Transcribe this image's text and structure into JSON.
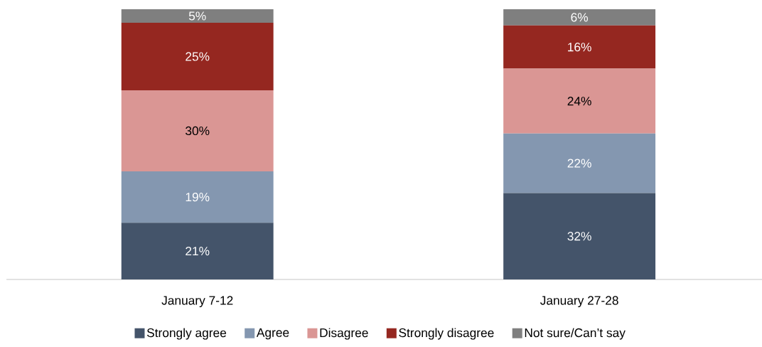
{
  "chart_data": {
    "type": "bar",
    "stacked": true,
    "categories": [
      "January 7-12",
      "January 27-28"
    ],
    "series": [
      {
        "name": "Strongly agree",
        "color": "#44546a",
        "values": [
          21,
          32
        ],
        "value_labels": [
          "21%",
          "32%"
        ]
      },
      {
        "name": "Agree",
        "color": "#8497b0",
        "values": [
          19,
          22
        ],
        "value_labels": [
          "19%",
          "22%"
        ]
      },
      {
        "name": "Disagree",
        "color": "#da9694",
        "values": [
          30,
          24
        ],
        "value_labels": [
          "30%",
          "24%"
        ]
      },
      {
        "name": "Strongly disagree",
        "color": "#952720",
        "values": [
          25,
          16
        ],
        "value_labels": [
          "25%",
          "16%"
        ]
      },
      {
        "name": "Not sure/Can’t say",
        "color": "#7f7f7f",
        "values": [
          5,
          6
        ],
        "value_labels": [
          "5%",
          "6%"
        ]
      }
    ],
    "ylim": [
      0,
      100
    ],
    "tick_labels": "x",
    "legend": "bottom"
  }
}
